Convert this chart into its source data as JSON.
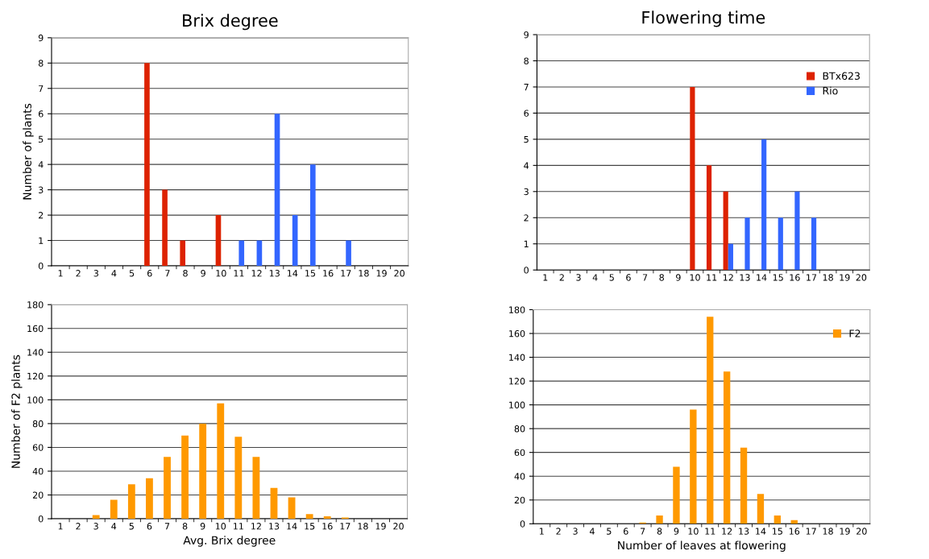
{
  "chart_data": [
    {
      "type": "bar",
      "title": "Brix degree",
      "ylabel": "Number of plants",
      "categories": [
        "1",
        "2",
        "3",
        "4",
        "5",
        "6",
        "7",
        "8",
        "9",
        "10",
        "11",
        "12",
        "13",
        "14",
        "15",
        "16",
        "17",
        "18",
        "19",
        "20"
      ],
      "ylim": [
        0,
        9
      ],
      "yticks": [
        0,
        1,
        2,
        3,
        4,
        5,
        6,
        7,
        8,
        9
      ],
      "grid": "y",
      "series": [
        {
          "color": "#dd2200",
          "values": [
            0,
            0,
            0,
            0,
            0,
            8,
            3,
            1,
            0,
            2,
            0,
            0,
            0,
            0,
            0,
            0,
            0,
            0,
            0,
            0
          ]
        },
        {
          "color": "#3366ff",
          "values": [
            0,
            0,
            0,
            0,
            0,
            0,
            0,
            0,
            0,
            0,
            1,
            1,
            6,
            2,
            4,
            0,
            1,
            0,
            0,
            0
          ]
        }
      ]
    },
    {
      "type": "bar",
      "title": "Flowering time",
      "categories": [
        "1",
        "2",
        "3",
        "4",
        "5",
        "6",
        "7",
        "8",
        "9",
        "10",
        "11",
        "12",
        "13",
        "14",
        "15",
        "16",
        "17",
        "18",
        "19",
        "20"
      ],
      "ylim": [
        0,
        9
      ],
      "yticks": [
        0,
        1,
        2,
        3,
        4,
        5,
        6,
        7,
        8,
        9
      ],
      "grid": "y",
      "legend": "top right",
      "series": [
        {
          "name": "BTx623",
          "color": "#dd2200",
          "values": [
            0,
            0,
            0,
            0,
            0,
            0,
            0,
            0,
            0,
            7,
            4,
            3,
            0,
            0,
            0,
            0,
            0,
            0,
            0,
            0
          ]
        },
        {
          "name": "Rio",
          "color": "#3366ff",
          "values": [
            0,
            0,
            0,
            0,
            0,
            0,
            0,
            0,
            0,
            0,
            0,
            1,
            2,
            5,
            2,
            3,
            2,
            0,
            0,
            0
          ]
        }
      ]
    },
    {
      "type": "bar",
      "xlabel": "Avg. Brix degree",
      "ylabel": "Number of F2 plants",
      "categories": [
        "1",
        "2",
        "3",
        "4",
        "5",
        "6",
        "7",
        "8",
        "9",
        "10",
        "11",
        "12",
        "13",
        "14",
        "15",
        "16",
        "17",
        "18",
        "19",
        "20"
      ],
      "ylim": [
        0,
        180
      ],
      "yticks": [
        0,
        20,
        40,
        60,
        80,
        100,
        120,
        140,
        160,
        180
      ],
      "grid": "y",
      "series": [
        {
          "color": "#ff9900",
          "values": [
            0,
            0,
            3,
            16,
            29,
            34,
            52,
            70,
            80,
            97,
            69,
            52,
            26,
            18,
            4,
            2,
            1,
            0,
            0,
            0
          ]
        }
      ]
    },
    {
      "type": "bar",
      "xlabel": "Number of leaves at flowering",
      "categories": [
        "1",
        "2",
        "3",
        "4",
        "5",
        "6",
        "7",
        "8",
        "9",
        "10",
        "11",
        "12",
        "13",
        "14",
        "15",
        "16",
        "17",
        "18",
        "19",
        "20"
      ],
      "ylim": [
        0,
        180
      ],
      "yticks": [
        0,
        20,
        40,
        60,
        80,
        100,
        120,
        140,
        160,
        180
      ],
      "grid": "y",
      "legend": "top right",
      "series": [
        {
          "name": "F2",
          "color": "#ff9900",
          "values": [
            0,
            0,
            0,
            0,
            0,
            0,
            1,
            7,
            48,
            96,
            174,
            128,
            64,
            25,
            7,
            3,
            0,
            0,
            0,
            0
          ]
        }
      ]
    }
  ]
}
